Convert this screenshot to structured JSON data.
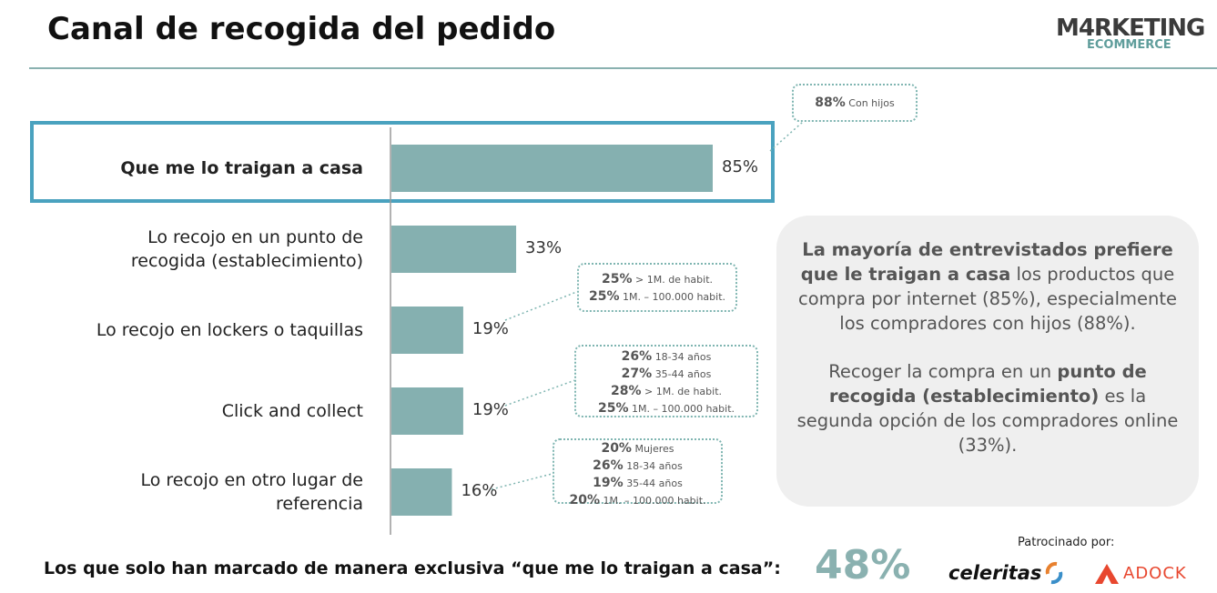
{
  "title": "Canal de recogida del pedido",
  "logo": {
    "line1": "M4RKETING",
    "line2": "ECOMMERCE"
  },
  "colors": {
    "bar": "#85b0b0",
    "accent": "#4aa2bf",
    "callout_border": "#7fb5b1",
    "footer_value": "#8ab1b0"
  },
  "chart_data": {
    "type": "bar",
    "orientation": "horizontal",
    "categories": [
      "Que me lo traigan a casa",
      "Lo recojo en un punto de recogida (establecimiento)",
      "Lo recojo en lockers o taquillas",
      "Click and collect",
      "Lo recojo en otro lugar de referencia"
    ],
    "category_lines": [
      [
        "Que me lo traigan a casa"
      ],
      [
        "Lo recojo en un punto de",
        "recogida (establecimiento)"
      ],
      [
        "Lo recojo en lockers o taquillas"
      ],
      [
        "Click and collect"
      ],
      [
        "Lo recojo en otro lugar de",
        "referencia"
      ]
    ],
    "values": [
      85,
      33,
      19,
      19,
      16
    ],
    "value_labels": [
      "85%",
      "33%",
      "19%",
      "19%",
      "16%"
    ],
    "highlighted_category": "Que me lo traigan a casa",
    "xlim": [
      0,
      100
    ],
    "grid": false
  },
  "callouts": [
    {
      "category": "Que me lo traigan a casa",
      "rows": [
        {
          "pct": "88%",
          "label": "Con hijos"
        }
      ]
    },
    {
      "category": "Lo recojo en lockers o taquillas",
      "rows": [
        {
          "pct": "25%",
          "label": "> 1M. de habit."
        },
        {
          "pct": "25%",
          "label": "1M. – 100.000 habit."
        }
      ]
    },
    {
      "category": "Click and collect",
      "rows": [
        {
          "pct": "26%",
          "label": "18-34 años"
        },
        {
          "pct": "27%",
          "label": "35-44 años"
        },
        {
          "pct": "28%",
          "label": "> 1M. de habit."
        },
        {
          "pct": "25%",
          "label": "1M. – 100.000 habit."
        }
      ]
    },
    {
      "category": "Lo recojo en otro lugar de referencia",
      "rows": [
        {
          "pct": "20%",
          "label": "Mujeres"
        },
        {
          "pct": "26%",
          "label": "18-34 años"
        },
        {
          "pct": "19%",
          "label": "35-44 años"
        },
        {
          "pct": "20%",
          "label": "1M. – 100.000 habit."
        }
      ]
    }
  ],
  "summary": {
    "p1_bold": "La mayoría de entrevistados prefiere que le traigan a casa",
    "p1_rest": " los productos que compra por internet (85%), especialmente los compradores con hijos (88%).",
    "p2_start": "Recoger la compra en un ",
    "p2_bold": "punto de recogida (establecimiento)",
    "p2_rest": " es la segunda opción de los compradores online (33%)."
  },
  "footer": {
    "text": "Los que solo han marcado de manera exclusiva “que me lo traigan a casa”:",
    "value": "48%"
  },
  "sponsors": {
    "label": "Patrocinado  por:",
    "names": [
      "celeritas",
      "ADOCK"
    ]
  }
}
